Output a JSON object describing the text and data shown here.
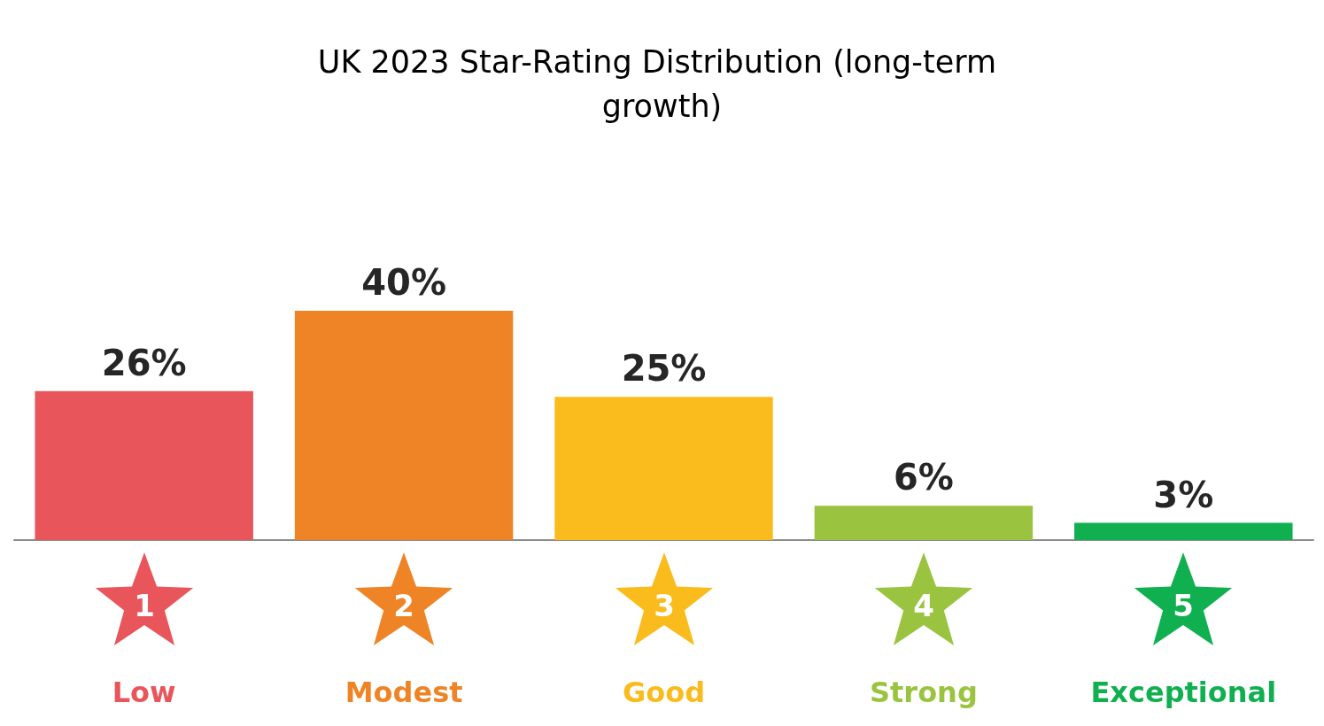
{
  "chart_data": {
    "type": "bar",
    "title": "UK 2023 Star-Rating Distribution (long-term growth)",
    "categories": [
      "Low",
      "Modest",
      "Good",
      "Strong",
      "Exceptional"
    ],
    "values": [
      26,
      40,
      25,
      6,
      3
    ],
    "value_labels": [
      "26%",
      "40%",
      "25%",
      "6%",
      "3%"
    ],
    "colors": [
      "#e8555a",
      "#ee8425",
      "#f9bc1c",
      "#9ac440",
      "#10b050"
    ],
    "annotations": [
      "1",
      "2",
      "3",
      "4",
      "5"
    ],
    "grid": false
  }
}
